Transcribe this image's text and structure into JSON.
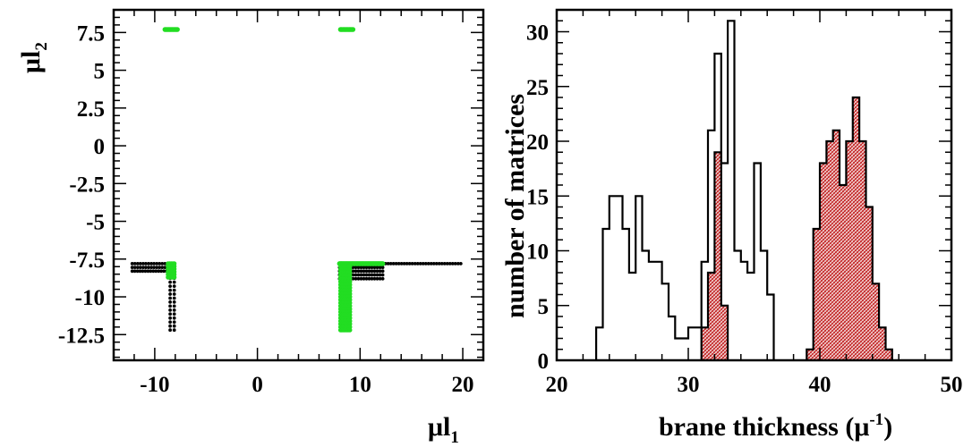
{
  "chart_data": [
    {
      "type": "scatter",
      "xlabel": "μl",
      "xlabel_sub": "1",
      "ylabel": "μl",
      "ylabel_sub": "2",
      "xlim": [
        -14,
        22
      ],
      "ylim": [
        -14.2,
        9
      ],
      "xticks": [
        -10,
        0,
        10,
        20
      ],
      "xtick_labels": [
        "-10",
        "0",
        "10",
        "20"
      ],
      "yticks": [
        7.5,
        5,
        2.5,
        0,
        -2.5,
        -5,
        -7.5,
        -10,
        -12.5
      ],
      "ytick_labels": [
        "7.5",
        "5",
        "2.5",
        "0",
        "-2.5",
        "-5",
        "-7.5",
        "-10",
        "-12.5"
      ],
      "colors": {
        "black_points": "#000000",
        "green_points": "#22dd22"
      },
      "black_points": {
        "left_rows": [
          {
            "y": -7.8,
            "x_from": -12.2,
            "x_to": -8.2
          },
          {
            "y": -8.05,
            "x_from": -12.2,
            "x_to": -8.2
          },
          {
            "y": -8.3,
            "x_from": -12.2,
            "x_to": -8.6
          }
        ],
        "left_columns": [
          {
            "x": -8.1,
            "y_from": -8.5,
            "y_to": -12.2
          },
          {
            "x": -8.5,
            "y_from": -8.5,
            "y_to": -12.2
          }
        ],
        "right_rows": [
          {
            "y": -7.8,
            "x_from": 12.2,
            "x_to": 19.8
          },
          {
            "y": -8.05,
            "x_from": 8.0,
            "x_to": 12.2
          },
          {
            "y": -8.3,
            "x_from": 8.0,
            "x_to": 12.2
          },
          {
            "y": -8.55,
            "x_from": 8.0,
            "x_to": 12.2
          },
          {
            "y": -8.8,
            "x_from": 8.0,
            "x_to": 12.2
          }
        ]
      },
      "green_points": {
        "top_segments": [
          {
            "y": 7.7,
            "x_from": -9.0,
            "x_to": -7.8
          },
          {
            "y": 7.7,
            "x_from": 8.1,
            "x_to": 9.3
          }
        ],
        "left_block": {
          "x_from": -8.7,
          "x_to": -8.1,
          "y_from": -7.8,
          "y_to": -8.7
        },
        "right_row": {
          "y": -7.8,
          "x_from": 8.0,
          "x_to": 12.2
        },
        "right_block": {
          "x_from": 8.1,
          "x_to": 9.0,
          "y_from": -8.0,
          "y_to": -12.2
        }
      }
    },
    {
      "type": "histogram",
      "xlabel": "brane thickness (μ",
      "xlabel_sup": "-1",
      "xlabel_end": ")",
      "ylabel": "number of matrices",
      "xlim": [
        20,
        50
      ],
      "ylim": [
        0,
        32
      ],
      "xticks": [
        20,
        30,
        40,
        50
      ],
      "xtick_labels": [
        "20",
        "30",
        "40",
        "50"
      ],
      "yticks": [
        0,
        5,
        10,
        15,
        20,
        25,
        30
      ],
      "ytick_labels": [
        "0",
        "5",
        "10",
        "15",
        "20",
        "25",
        "30"
      ],
      "colors": {
        "outline": "#000000",
        "filled": "#c01818",
        "filled_bg": "#f2d8d8"
      },
      "bin_edges": [
        23.0,
        23.5,
        24.0,
        24.5,
        25.0,
        25.5,
        26.0,
        26.5,
        27.0,
        27.5,
        28.0,
        28.5,
        29.0,
        29.5,
        30.0,
        30.5,
        31.0,
        31.5,
        32.0,
        32.5,
        33.0,
        33.5,
        34.0,
        34.5,
        35.0,
        35.5,
        36.0,
        36.5
      ],
      "series": [
        {
          "style": "outline",
          "counts": [
            3,
            12,
            15,
            15,
            12,
            8,
            15,
            10,
            9,
            9,
            7,
            4,
            2,
            2,
            3,
            3,
            9,
            21,
            28,
            18,
            31,
            10,
            9,
            8,
            18,
            10,
            6
          ]
        },
        {
          "style": "filled",
          "bins": [
            {
              "x0": 31.0,
              "x1": 31.5,
              "count": 3
            },
            {
              "x0": 31.5,
              "x1": 32.0,
              "count": 8
            },
            {
              "x0": 32.0,
              "x1": 32.5,
              "count": 19
            },
            {
              "x0": 32.5,
              "x1": 33.0,
              "count": 5
            },
            {
              "x0": 39.0,
              "x1": 39.5,
              "count": 1
            },
            {
              "x0": 39.5,
              "x1": 40.0,
              "count": 12
            },
            {
              "x0": 40.0,
              "x1": 40.5,
              "count": 18
            },
            {
              "x0": 40.5,
              "x1": 41.0,
              "count": 20
            },
            {
              "x0": 41.0,
              "x1": 41.5,
              "count": 21
            },
            {
              "x0": 41.5,
              "x1": 42.0,
              "count": 16
            },
            {
              "x0": 42.0,
              "x1": 42.5,
              "count": 20
            },
            {
              "x0": 42.5,
              "x1": 43.0,
              "count": 24
            },
            {
              "x0": 43.0,
              "x1": 43.5,
              "count": 20
            },
            {
              "x0": 43.5,
              "x1": 44.0,
              "count": 14
            },
            {
              "x0": 44.0,
              "x1": 44.5,
              "count": 7
            },
            {
              "x0": 44.5,
              "x1": 45.0,
              "count": 3
            },
            {
              "x0": 45.0,
              "x1": 45.5,
              "count": 1
            }
          ]
        }
      ]
    }
  ]
}
